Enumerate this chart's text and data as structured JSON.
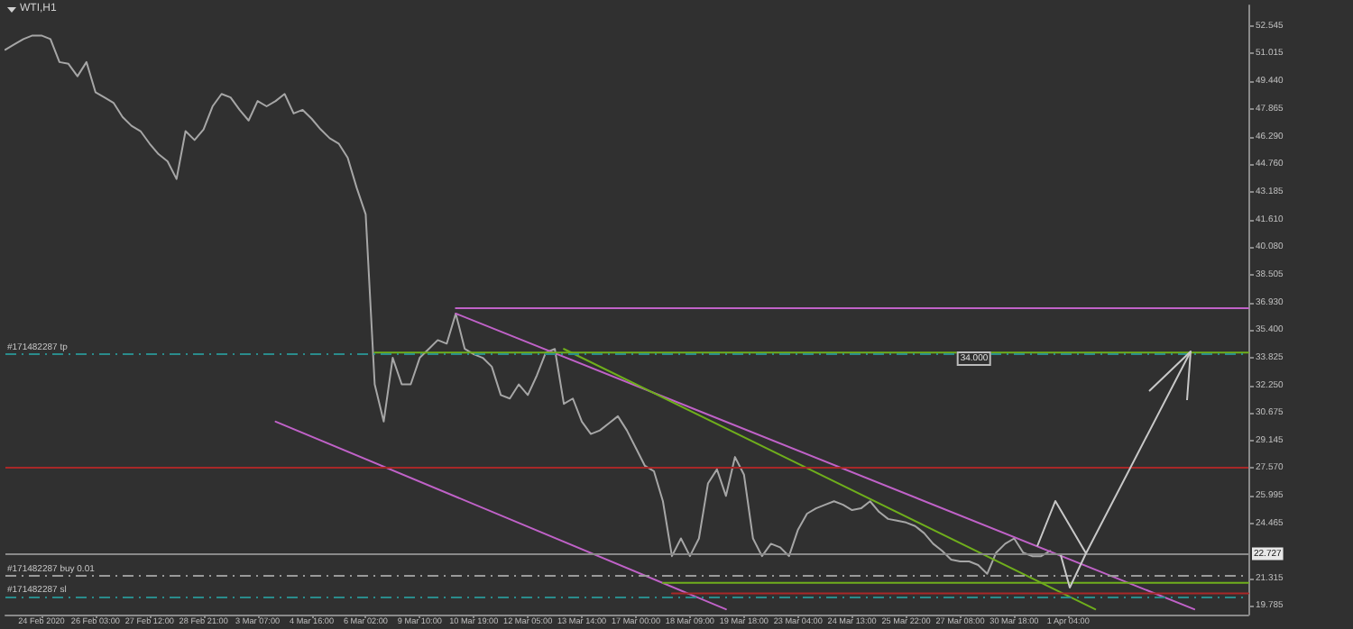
{
  "chart_data": {
    "type": "line",
    "title": "WTI,H1",
    "grid": false,
    "marker": "none",
    "ylim": [
      19.3,
      53.7
    ],
    "categories": [
      null,
      null,
      null,
      null,
      "24 Feb 2020",
      null,
      null,
      null,
      null,
      null,
      "26 Feb 03:00",
      null,
      null,
      null,
      null,
      null,
      "27 Feb 12:00",
      null,
      null,
      null,
      null,
      null,
      "28 Feb 21:00",
      null,
      null,
      null,
      null,
      null,
      "3 Mar 07:00",
      null,
      null,
      null,
      null,
      null,
      "4 Mar 16:00",
      null,
      null,
      null,
      null,
      null,
      "6 Mar 02:00",
      null,
      null,
      null,
      null,
      null,
      "9 Mar 10:00",
      null,
      null,
      null,
      null,
      null,
      "10 Mar 19:00",
      null,
      null,
      null,
      null,
      null,
      "12 Mar 05:00",
      null,
      null,
      null,
      null,
      null,
      "13 Mar 14:00",
      null,
      null,
      null,
      null,
      null,
      "17 Mar 00:00",
      null,
      null,
      null,
      null,
      null,
      "18 Mar 09:00",
      null,
      null,
      null,
      null,
      null,
      "19 Mar 18:00",
      null,
      null,
      null,
      null,
      null,
      "23 Mar 04:00",
      null,
      null,
      null,
      null,
      null,
      "24 Mar 13:00",
      null,
      null,
      null,
      null,
      null,
      "25 Mar 22:00",
      null,
      null,
      null,
      null,
      null,
      "27 Mar 08:00",
      null,
      null,
      null,
      null,
      null,
      "30 Mar 18:00",
      null,
      null,
      null,
      null,
      null,
      "1 Apr 04:00",
      null,
      null,
      null,
      null,
      null,
      null,
      null,
      null,
      null,
      null,
      null,
      null,
      null,
      null,
      null,
      null,
      null,
      null,
      null,
      null
    ],
    "yticks": [
      19.785,
      21.315,
      24.465,
      25.995,
      {
        "value": 27.57,
        "label": "27.570"
      },
      29.145,
      30.675,
      {
        "value": 32.25,
        "label": "32.250"
      },
      33.825,
      {
        "value": 35.4,
        "label": "35.400"
      },
      {
        "value": 36.93,
        "label": "36.930"
      },
      38.505,
      {
        "value": 40.08,
        "label": "40.080"
      },
      {
        "value": 41.61,
        "label": "41.610"
      },
      43.185,
      {
        "value": 44.76,
        "label": "44.760"
      },
      {
        "value": 46.29,
        "label": "46.290"
      },
      47.865,
      {
        "value": 49.44,
        "label": "49.440"
      },
      51.015,
      52.545
    ],
    "series": [
      {
        "color": "#a6a6a6",
        "values": [
          51.2,
          51.5,
          51.8,
          52.0,
          52.0,
          51.8,
          50.5,
          50.4,
          49.7,
          50.5,
          48.8,
          48.5,
          48.2,
          47.4,
          46.9,
          46.6,
          45.9,
          45.3,
          44.9,
          43.9,
          46.6,
          46.1,
          46.7,
          48.0,
          48.7,
          48.5,
          47.8,
          47.2,
          48.3,
          48.0,
          48.3,
          48.7,
          47.6,
          47.8,
          47.3,
          46.7,
          46.2,
          45.9,
          45.1,
          43.4,
          41.9,
          32.3,
          30.2,
          33.8,
          32.3,
          32.3,
          33.8,
          34.3,
          34.8,
          34.6,
          36.3,
          34.3,
          34.0,
          33.8,
          33.3,
          31.7,
          31.5,
          32.3,
          31.7,
          32.8,
          34.1,
          34.3,
          31.2,
          31.5,
          30.2,
          29.5,
          29.7,
          30.1,
          30.5,
          29.7,
          28.7,
          27.7,
          27.4,
          25.7,
          22.6,
          23.6,
          22.6,
          23.6,
          26.7,
          27.5,
          26.0,
          28.2,
          27.2,
          23.6,
          22.6,
          23.3,
          23.1,
          22.6,
          24.1,
          25.0,
          25.3,
          25.5,
          25.7,
          25.5,
          25.2,
          25.3,
          25.7,
          25.1,
          24.7,
          24.6,
          24.5,
          24.3,
          23.9,
          23.3,
          22.9,
          22.4,
          22.3,
          22.3,
          22.1,
          21.6,
          22.8,
          23.3,
          23.6,
          22.8,
          22.6,
          22.6,
          22.9,
          null,
          null,
          null,
          null,
          null,
          null,
          null,
          null,
          null,
          null,
          null,
          null,
          null,
          null,
          null,
          null,
          null,
          null,
          null,
          null,
          null,
          null
        ]
      },
      {
        "color": "#c062c8",
        "values": [
          null,
          null,
          null,
          null,
          null,
          null,
          null,
          null,
          null,
          null,
          null,
          null,
          null,
          null,
          null,
          null,
          null,
          null,
          null,
          null,
          null,
          null,
          null,
          null,
          null,
          null,
          null,
          null,
          null,
          null,
          null,
          null,
          null,
          null,
          null,
          null,
          null,
          null,
          null,
          null,
          null,
          null,
          null,
          null,
          null,
          null,
          null,
          null,
          null,
          null,
          36.6,
          null,
          null,
          null,
          null,
          null,
          null,
          null,
          null,
          null,
          null,
          null,
          null,
          null,
          null,
          null,
          null,
          null,
          null,
          null,
          null,
          null,
          null,
          null,
          null,
          null,
          null,
          null,
          null,
          null,
          null,
          null,
          null,
          null,
          null,
          null,
          null,
          null,
          null,
          null,
          null,
          null,
          null,
          null,
          null,
          null,
          null,
          null,
          null,
          null,
          null,
          null,
          null,
          null,
          null,
          null,
          null,
          null,
          null,
          null,
          null,
          null,
          null,
          null,
          null,
          null,
          null,
          null,
          null,
          null,
          null,
          null,
          null,
          null,
          null,
          null,
          null,
          null,
          null,
          null,
          null,
          null,
          null,
          null,
          null,
          null,
          null,
          null,
          36.6
        ]
      },
      {
        "color": "#c062c8",
        "values": [
          null,
          null,
          null,
          null,
          null,
          null,
          null,
          null,
          null,
          null,
          null,
          null,
          null,
          null,
          null,
          null,
          null,
          null,
          null,
          null,
          null,
          null,
          null,
          null,
          null,
          null,
          null,
          null,
          null,
          null,
          null,
          null,
          null,
          null,
          null,
          null,
          null,
          null,
          null,
          null,
          null,
          null,
          null,
          null,
          null,
          null,
          null,
          null,
          null,
          null,
          36.3,
          null,
          null,
          null,
          null,
          null,
          null,
          null,
          null,
          null,
          null,
          null,
          null,
          null,
          null,
          null,
          null,
          null,
          null,
          null,
          null,
          null,
          null,
          null,
          null,
          null,
          null,
          null,
          null,
          null,
          null,
          null,
          null,
          null,
          null,
          null,
          null,
          null,
          null,
          null,
          null,
          null,
          null,
          null,
          null,
          null,
          null,
          null,
          null,
          null,
          null,
          null,
          null,
          null,
          null,
          null,
          null,
          null,
          null,
          null,
          null,
          null,
          null,
          null,
          null,
          null,
          null,
          null,
          null,
          null,
          null,
          null,
          null,
          null,
          null,
          null,
          null,
          null,
          null,
          null,
          null,
          null,
          19.6,
          null,
          null,
          null,
          null,
          null,
          null
        ]
      },
      {
        "color": "#c062c8",
        "values": [
          null,
          null,
          null,
          null,
          null,
          null,
          null,
          null,
          null,
          null,
          null,
          null,
          null,
          null,
          null,
          null,
          null,
          null,
          null,
          null,
          null,
          null,
          null,
          null,
          null,
          null,
          null,
          null,
          null,
          null,
          30.2,
          null,
          null,
          null,
          null,
          null,
          null,
          null,
          null,
          null,
          null,
          null,
          null,
          null,
          null,
          null,
          null,
          null,
          null,
          null,
          null,
          null,
          null,
          null,
          null,
          null,
          null,
          null,
          null,
          null,
          null,
          null,
          null,
          null,
          null,
          null,
          null,
          null,
          null,
          null,
          null,
          null,
          null,
          null,
          null,
          null,
          null,
          null,
          null,
          null,
          19.6,
          null,
          null,
          null,
          null,
          null,
          null,
          null,
          null,
          null,
          null,
          null,
          null,
          null,
          null,
          null,
          null,
          null,
          null,
          null,
          null,
          null,
          null,
          null,
          null,
          null,
          null,
          null,
          null,
          null,
          null,
          null,
          null,
          null,
          null,
          null,
          null,
          null,
          null,
          null,
          null,
          null,
          null,
          null,
          null,
          null,
          null,
          null,
          null,
          null,
          null,
          null,
          null,
          null,
          null,
          null,
          null,
          null,
          null
        ]
      },
      {
        "color": "#6fae1c",
        "values": [
          null,
          null,
          null,
          null,
          null,
          null,
          null,
          null,
          null,
          null,
          null,
          null,
          null,
          null,
          null,
          null,
          null,
          null,
          null,
          null,
          null,
          null,
          null,
          null,
          null,
          null,
          null,
          null,
          null,
          null,
          null,
          null,
          null,
          null,
          null,
          null,
          null,
          null,
          null,
          null,
          null,
          null,
          null,
          null,
          null,
          null,
          null,
          null,
          null,
          null,
          null,
          null,
          null,
          null,
          null,
          null,
          null,
          null,
          null,
          null,
          null,
          null,
          34.3,
          null,
          null,
          null,
          null,
          null,
          null,
          null,
          null,
          null,
          null,
          null,
          null,
          null,
          null,
          null,
          null,
          null,
          null,
          null,
          null,
          null,
          null,
          null,
          null,
          null,
          null,
          null,
          null,
          null,
          null,
          null,
          null,
          null,
          null,
          null,
          null,
          null,
          null,
          null,
          null,
          null,
          null,
          null,
          null,
          null,
          null,
          null,
          null,
          null,
          null,
          null,
          null,
          null,
          null,
          null,
          null,
          null,
          null,
          19.6,
          null,
          null,
          null,
          null,
          null,
          null,
          null,
          null,
          null,
          null,
          null,
          null,
          null,
          null,
          null,
          null,
          null
        ]
      },
      {
        "color": "#6fae1c",
        "values": [
          null,
          null,
          null,
          null,
          null,
          null,
          null,
          null,
          null,
          null,
          null,
          null,
          null,
          null,
          null,
          null,
          null,
          null,
          null,
          null,
          null,
          null,
          null,
          null,
          null,
          null,
          null,
          null,
          null,
          null,
          null,
          null,
          null,
          null,
          null,
          null,
          null,
          null,
          null,
          null,
          null,
          34.1,
          null,
          null,
          null,
          null,
          null,
          null,
          null,
          null,
          null,
          null,
          null,
          null,
          null,
          null,
          null,
          null,
          null,
          null,
          null,
          null,
          null,
          null,
          null,
          null,
          null,
          null,
          null,
          null,
          null,
          null,
          null,
          null,
          null,
          null,
          null,
          null,
          null,
          null,
          null,
          null,
          null,
          null,
          null,
          null,
          null,
          null,
          null,
          null,
          null,
          null,
          null,
          null,
          null,
          null,
          null,
          null,
          null,
          null,
          null,
          null,
          null,
          null,
          null,
          null,
          null,
          null,
          null,
          null,
          null,
          null,
          null,
          null,
          null,
          null,
          null,
          null,
          null,
          null,
          null,
          null,
          null,
          null,
          null,
          null,
          null,
          null,
          null,
          null,
          null,
          null,
          null,
          null,
          null,
          null,
          null,
          null,
          34.1
        ]
      },
      {
        "color": "#6fae1c",
        "values": [
          null,
          null,
          null,
          null,
          null,
          null,
          null,
          null,
          null,
          null,
          null,
          null,
          null,
          null,
          null,
          null,
          null,
          null,
          null,
          null,
          null,
          null,
          null,
          null,
          null,
          null,
          null,
          null,
          null,
          null,
          null,
          null,
          null,
          null,
          null,
          null,
          null,
          null,
          null,
          null,
          null,
          null,
          null,
          null,
          null,
          null,
          null,
          null,
          null,
          null,
          null,
          null,
          null,
          null,
          null,
          null,
          null,
          null,
          null,
          null,
          null,
          null,
          null,
          null,
          null,
          null,
          null,
          null,
          null,
          null,
          null,
          null,
          null,
          21.1,
          null,
          null,
          null,
          null,
          null,
          null,
          null,
          null,
          null,
          null,
          null,
          null,
          null,
          null,
          null,
          null,
          null,
          null,
          null,
          null,
          null,
          null,
          null,
          null,
          null,
          null,
          null,
          null,
          null,
          null,
          null,
          null,
          null,
          null,
          null,
          null,
          null,
          null,
          null,
          null,
          null,
          null,
          null,
          null,
          null,
          null,
          null,
          null,
          null,
          null,
          null,
          null,
          null,
          null,
          null,
          null,
          null,
          null,
          null,
          null,
          null,
          null,
          null,
          null,
          21.1
        ]
      },
      {
        "color": "#a82828",
        "values": [
          null,
          null,
          null,
          null,
          null,
          null,
          null,
          null,
          null,
          null,
          null,
          null,
          null,
          null,
          null,
          null,
          null,
          null,
          null,
          null,
          null,
          null,
          null,
          null,
          null,
          null,
          null,
          null,
          null,
          null,
          null,
          null,
          null,
          null,
          null,
          null,
          null,
          null,
          null,
          null,
          null,
          null,
          null,
          null,
          null,
          null,
          null,
          null,
          null,
          null,
          null,
          null,
          null,
          null,
          null,
          null,
          null,
          null,
          null,
          null,
          null,
          null,
          null,
          null,
          null,
          null,
          null,
          null,
          null,
          null,
          null,
          null,
          null,
          null,
          20.5,
          null,
          null,
          null,
          null,
          null,
          null,
          null,
          null,
          null,
          null,
          null,
          null,
          null,
          null,
          null,
          null,
          null,
          null,
          null,
          null,
          null,
          null,
          null,
          null,
          null,
          null,
          null,
          null,
          null,
          null,
          null,
          null,
          null,
          null,
          null,
          null,
          null,
          null,
          null,
          null,
          null,
          null,
          null,
          null,
          null,
          null,
          null,
          null,
          null,
          null,
          null,
          null,
          null,
          null,
          null,
          null,
          null,
          null,
          null,
          null,
          null,
          null,
          null,
          20.5
        ]
      }
    ],
    "ref_lines": [
      {
        "axis": "y",
        "value": 34.0,
        "label": "#171482287 tp",
        "color": "#2a8c8c",
        "line_style": "dashed"
      },
      {
        "axis": "y",
        "value": 27.6,
        "color": "#a82828"
      },
      {
        "axis": "y",
        "value": 22.727,
        "label": "22.727",
        "color": "#8a8a8a"
      },
      {
        "axis": "y",
        "value": 21.5,
        "label": "#171482287 buy 0.01",
        "color": "#9a9a9a",
        "line_style": "dashed"
      },
      {
        "axis": "y",
        "value": 20.3,
        "label": "#171482287 sl",
        "color": "#2a8c8c",
        "line_style": "dashed"
      }
    ],
    "annotations": [
      {
        "text": "34.000",
        "y": 34.1
      }
    ]
  }
}
